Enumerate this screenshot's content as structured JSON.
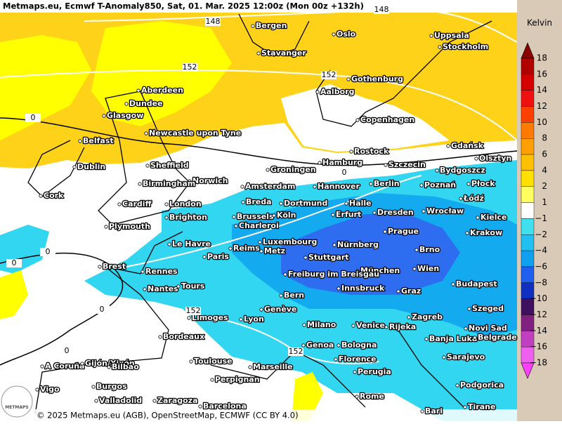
{
  "header": {
    "title": "Metmaps.eu, Ecmwf T-Anomaly850, Sat, 01. Mar. 2025 12:00z (Mon 00z +132h)"
  },
  "legend": {
    "title": "Kelvin",
    "ticks": [
      "18",
      "16",
      "14",
      "12",
      "10",
      "8",
      "6",
      "4",
      "2",
      "1",
      "−1",
      "−2",
      "−4",
      "−6",
      "−8",
      "−10",
      "−12",
      "−14",
      "−16",
      "−18"
    ]
  },
  "cities": [
    "Bergen",
    "Oslo",
    "Uppsala",
    "Stockholm",
    "Stavanger",
    "Aberdeen",
    "Gothenburg",
    "Dundee",
    "Aalborg",
    "Glasgow",
    "Copenhagen",
    "Newcastle upon Tyne",
    "Belfast",
    "Rostock",
    "Gdańsk",
    "Olsztyn",
    "Sheffield",
    "Dublin",
    "Groningen",
    "Hamburg",
    "Szczecin",
    "Bydgoszcz",
    "Norwich",
    "Birmingham",
    "Amsterdam",
    "Hannover",
    "Berlin",
    "Poznań",
    "Płock",
    "Cork",
    "Łódź",
    "Cardiff",
    "London",
    "Breda",
    "Dortmund",
    "Halle",
    "Dresden",
    "Wrocław",
    "Kielce",
    "Brighton",
    "Brussels",
    "Köln",
    "Erfurt",
    "Plymouth",
    "Charleroi",
    "Prague",
    "Krakow",
    "Le Havre",
    "Luxembourg",
    "Nürnberg",
    "Brno",
    "Reims",
    "Metz",
    "Paris",
    "Stuttgart",
    "Brest",
    "München",
    "Wien",
    "Rennes",
    "Freiburg im Breisgau",
    "Budapest",
    "Nantes",
    "Tours",
    "Bern",
    "Innsbruck",
    "Graz",
    "Genève",
    "Szeged",
    "Limoges",
    "Lyon",
    "Zagreb",
    "Milano",
    "Venice",
    "Rijeka",
    "Novi Sad",
    "Bordeaux",
    "Banja Luka",
    "Belgrade",
    "Genoa",
    "Bologna",
    "Toulouse",
    "Marseille",
    "Florence",
    "Sarajevo",
    "A Coruña",
    "Gijón/Xixón",
    "Bilbao",
    "Perugia",
    "Perpignan",
    "Burgos",
    "Vigo",
    "Podgorica",
    "Valladolid",
    "Zaragoza",
    "Rome",
    "Barcelona",
    "Bari",
    "Tirane"
  ],
  "contour_labels": [
    "148",
    "148",
    "152",
    "152",
    "0",
    "0",
    "0",
    "0",
    "0",
    "0",
    "152",
    "152"
  ],
  "footer": {
    "credit": "© 2025 Metmaps.eu (AGB), OpenStreetMap, ECMWF (CC BY 4.0)"
  },
  "logo": "METMAPS"
}
